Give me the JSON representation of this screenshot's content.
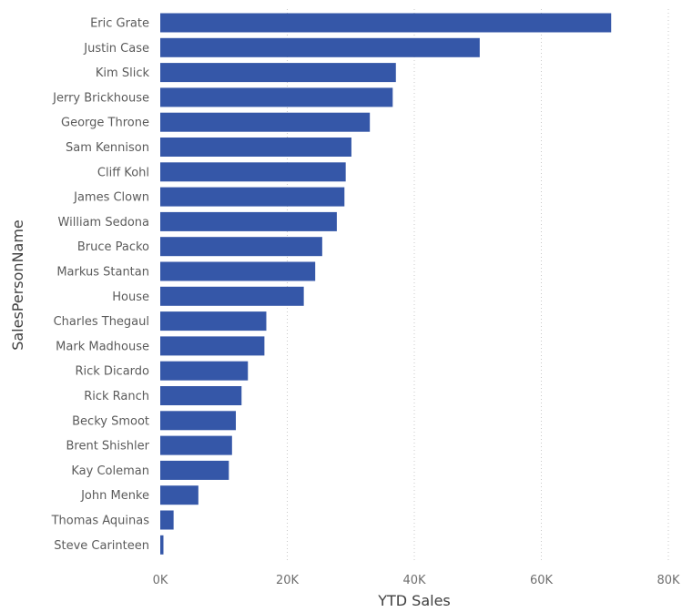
{
  "chart_data": {
    "type": "bar",
    "orientation": "horizontal",
    "title": "",
    "xlabel": "YTD Sales",
    "ylabel": "SalesPersonName",
    "xlim": [
      0,
      80000
    ],
    "x_ticks": [
      {
        "value": 0,
        "label": "0K"
      },
      {
        "value": 20000,
        "label": "20K"
      },
      {
        "value": 40000,
        "label": "40K"
      },
      {
        "value": 60000,
        "label": "60K"
      },
      {
        "value": 80000,
        "label": "80K"
      }
    ],
    "grid": true,
    "bar_color": "#3557a8",
    "categories": [
      "Eric Grate",
      "Justin Case",
      "Kim Slick",
      "Jerry Brickhouse",
      "George Throne",
      "Sam Kennison",
      "Cliff Kohl",
      "James Clown",
      "William Sedona",
      "Bruce Packo",
      "Markus Stantan",
      "House",
      "Charles Thegaul",
      "Mark Madhouse",
      "Rick Dicardo",
      "Rick Ranch",
      "Becky Smoot",
      "Brent Shishler",
      "Kay Coleman",
      "John Menke",
      "Thomas Aquinas",
      "Steve Carinteen"
    ],
    "values": [
      71000,
      50300,
      37100,
      36600,
      33000,
      30100,
      29200,
      29000,
      27800,
      25500,
      24400,
      22600,
      16700,
      16400,
      13800,
      12800,
      11900,
      11300,
      10800,
      6000,
      2100,
      500
    ]
  }
}
